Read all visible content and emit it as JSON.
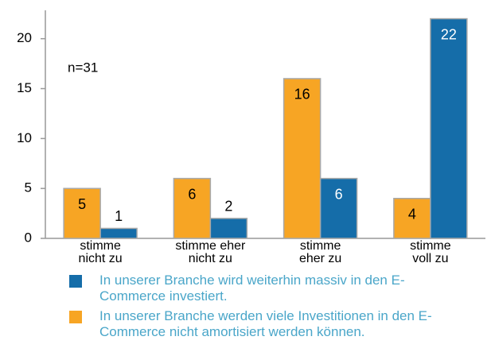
{
  "chart_data": {
    "type": "bar",
    "annotation": "n=31",
    "categories": [
      [
        "stimme",
        "nicht zu"
      ],
      [
        "stimme eher",
        "nicht zu"
      ],
      [
        "stimme",
        "eher zu"
      ],
      [
        "stimme",
        "voll zu"
      ]
    ],
    "series": [
      {
        "name": "In unserer Branche werden viele Investitionen in den E-Commerce nicht amortisiert werden können.",
        "color": "#f7a524",
        "values": [
          5,
          6,
          16,
          4
        ]
      },
      {
        "name": "In unserer Branche wird weiterhin massiv in den E-Commerce investiert.",
        "color": "#156da9",
        "values": [
          1,
          2,
          6,
          22
        ]
      }
    ],
    "ylim": [
      0,
      23
    ],
    "yticks": [
      0,
      5,
      10,
      15,
      20
    ]
  }
}
